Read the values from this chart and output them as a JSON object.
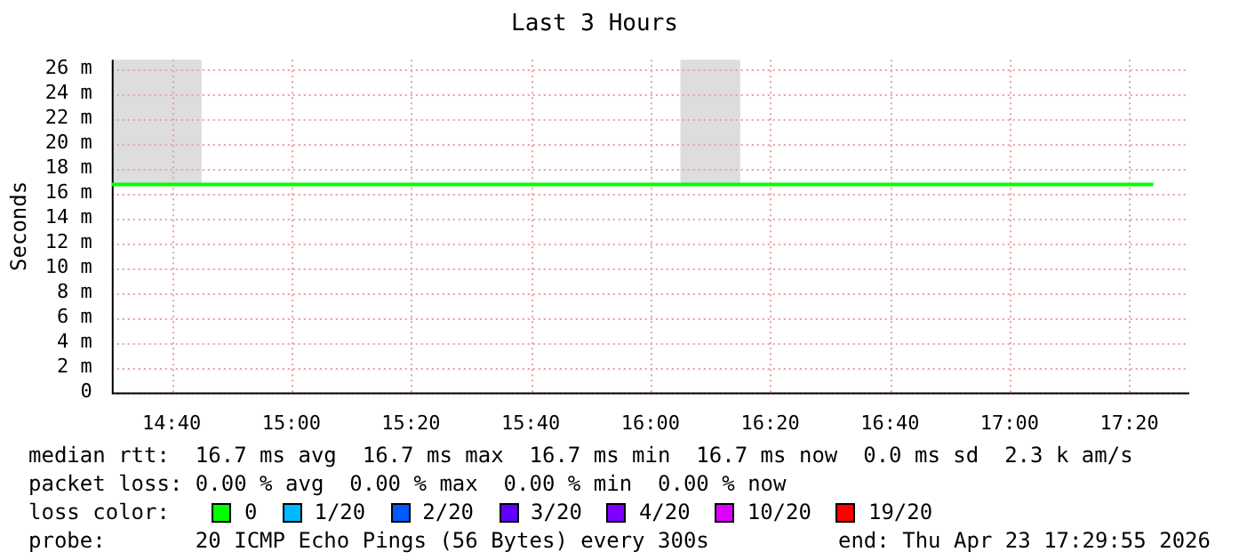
{
  "chart_data": {
    "type": "line",
    "title": "Last 3 Hours",
    "ylabel": "Seconds",
    "legend_title": "loss color:",
    "legend": "bottom",
    "grid": true,
    "marker": "none",
    "line_style": "solid",
    "xlim": [
      14.5,
      17.5
    ],
    "xticks": [
      {
        "value": 14.6667,
        "label": "14:40"
      },
      {
        "value": 15,
        "label": "15:00"
      },
      {
        "value": 15.3333,
        "label": "15:20"
      },
      {
        "value": 15.6667,
        "label": "15:40"
      },
      {
        "value": 16,
        "label": "16:00"
      },
      {
        "value": 16.3333,
        "label": "16:20"
      },
      {
        "value": 16.6667,
        "label": "16:40"
      },
      {
        "value": 17,
        "label": "17:00"
      },
      {
        "value": 17.3333,
        "label": "17:20"
      }
    ],
    "ylim": [
      0,
      26.7
    ],
    "yticks": [
      0,
      {
        "value": 2,
        "label": "2 m"
      },
      {
        "value": 4,
        "label": "4 m"
      },
      {
        "value": 6,
        "label": "6 m"
      },
      {
        "value": 8,
        "label": "8 m"
      },
      {
        "value": 10,
        "label": "10 m"
      },
      {
        "value": 12,
        "label": "12 m"
      },
      {
        "value": 14,
        "label": "14 m"
      },
      {
        "value": 16,
        "label": "16 m"
      },
      {
        "value": 18,
        "label": "18 m"
      },
      {
        "value": 20,
        "label": "20 m"
      },
      {
        "value": 22,
        "label": "22 m"
      },
      {
        "value": 24,
        "label": "24 m"
      },
      {
        "value": 26,
        "label": "26 m"
      }
    ],
    "bands": [
      {
        "axis": "x",
        "from": 14.5,
        "to": 14.75,
        "color": "#dddddd"
      },
      {
        "axis": "x",
        "from": 16.0833,
        "to": 16.25,
        "color": "#dddddd"
      }
    ],
    "series": [
      {
        "name": "0",
        "color": "#00ff00",
        "x": [
          14.5,
          17.4
        ],
        "values": [
          16.7,
          16.7
        ]
      },
      {
        "name": "1/20",
        "color": "#00b8ff"
      },
      {
        "name": "2/20",
        "color": "#0059ff"
      },
      {
        "name": "3/20",
        "color": "#5e00ff"
      },
      {
        "name": "4/20",
        "color": "#7e00ff"
      },
      {
        "name": "10/20",
        "color": "#dd00ff"
      },
      {
        "name": "19/20",
        "color": "#ff0000"
      }
    ],
    "annotations": [
      "median rtt:  16.7 ms avg  16.7 ms max  16.7 ms min  16.7 ms now  0.0 ms sd  2.3 k am/s",
      "packet loss: 0.00 % avg  0.00 % max  0.00 % min  0.00 % now",
      "probe:       20 ICMP Echo Pings (56 Bytes) every 300s",
      "end: Thu Apr 23 17:29:55 2026"
    ]
  }
}
